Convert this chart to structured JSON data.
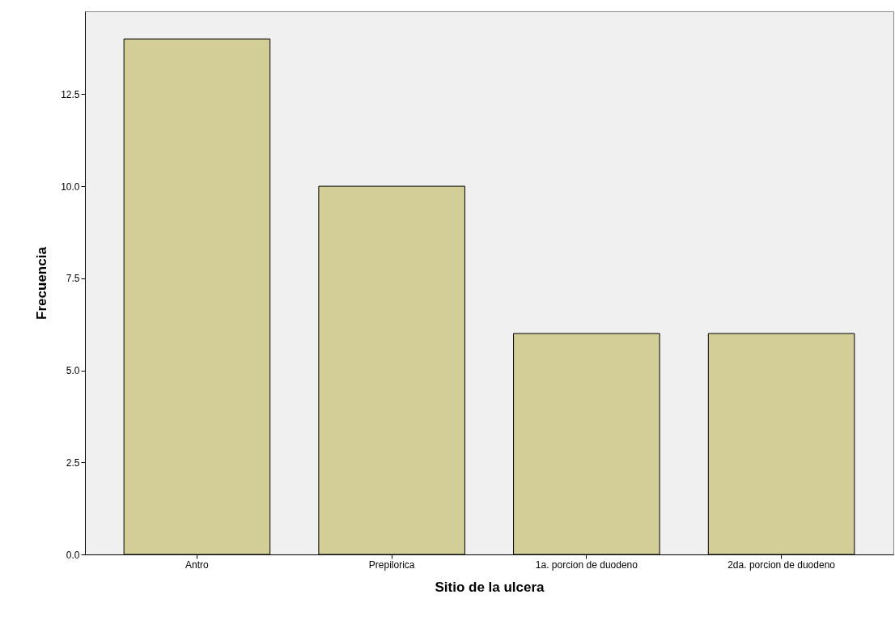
{
  "chart_data": {
    "type": "bar",
    "xlabel": "Sitio de la ulcera",
    "ylabel": "Frecuencia",
    "categories": [
      "Antro",
      "Prepilorica",
      "1a. porcion de duodeno",
      "2da. porcion de duodeno"
    ],
    "values": [
      14,
      10,
      6,
      6
    ],
    "color": "#d3ce97",
    "ylim": [
      0,
      14.75
    ],
    "yticks": [
      {
        "value": 0,
        "label": "0.0"
      },
      {
        "value": 2.5,
        "label": "2.5"
      },
      {
        "value": 5,
        "label": "5.0"
      },
      {
        "value": 7.5,
        "label": "7.5"
      },
      {
        "value": 10,
        "label": "10.0"
      },
      {
        "value": 12.5,
        "label": "12.5"
      }
    ],
    "grid": false
  }
}
